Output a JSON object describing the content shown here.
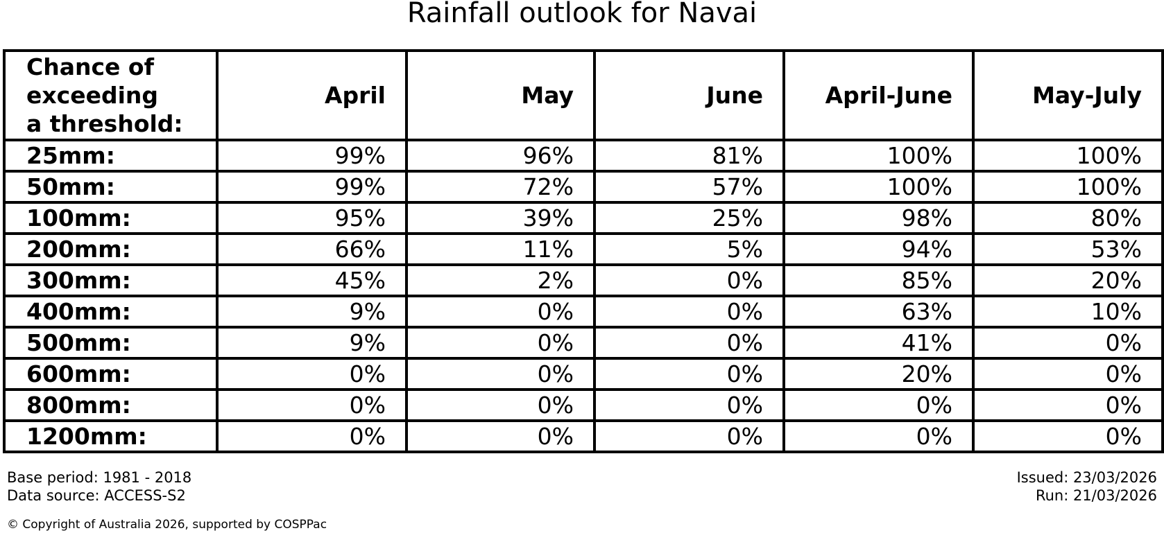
{
  "title": "Rainfall outlook for Navai",
  "table": {
    "corner_header": "Chance of\nexceeding\na threshold:",
    "months": [
      "April",
      "May",
      "June",
      "April-June",
      "May-July"
    ],
    "rows": [
      {
        "threshold": "25mm:",
        "values": [
          "99%",
          "96%",
          "81%",
          "100%",
          "100%"
        ]
      },
      {
        "threshold": "50mm:",
        "values": [
          "99%",
          "72%",
          "57%",
          "100%",
          "100%"
        ]
      },
      {
        "threshold": "100mm:",
        "values": [
          "95%",
          "39%",
          "25%",
          "98%",
          "80%"
        ]
      },
      {
        "threshold": "200mm:",
        "values": [
          "66%",
          "11%",
          "5%",
          "94%",
          "53%"
        ]
      },
      {
        "threshold": "300mm:",
        "values": [
          "45%",
          "2%",
          "0%",
          "85%",
          "20%"
        ]
      },
      {
        "threshold": "400mm:",
        "values": [
          "9%",
          "0%",
          "0%",
          "63%",
          "10%"
        ]
      },
      {
        "threshold": "500mm:",
        "values": [
          "9%",
          "0%",
          "0%",
          "41%",
          "0%"
        ]
      },
      {
        "threshold": "600mm:",
        "values": [
          "0%",
          "0%",
          "0%",
          "20%",
          "0%"
        ]
      },
      {
        "threshold": "800mm:",
        "values": [
          "0%",
          "0%",
          "0%",
          "0%",
          "0%"
        ]
      },
      {
        "threshold": "1200mm:",
        "values": [
          "0%",
          "0%",
          "0%",
          "0%",
          "0%"
        ]
      }
    ]
  },
  "chart_data": {
    "type": "table",
    "title": "Rainfall outlook for Navai",
    "row_header": "Chance of exceeding a threshold:",
    "columns": [
      "April",
      "May",
      "June",
      "April-June",
      "May-July"
    ],
    "thresholds_mm": [
      25,
      50,
      100,
      200,
      300,
      400,
      500,
      600,
      800,
      1200
    ],
    "probabilities_pct": [
      [
        99,
        96,
        81,
        100,
        100
      ],
      [
        99,
        72,
        57,
        100,
        100
      ],
      [
        95,
        39,
        25,
        98,
        80
      ],
      [
        66,
        11,
        5,
        94,
        53
      ],
      [
        45,
        2,
        0,
        85,
        20
      ],
      [
        9,
        0,
        0,
        63,
        10
      ],
      [
        9,
        0,
        0,
        41,
        0
      ],
      [
        0,
        0,
        0,
        20,
        0
      ],
      [
        0,
        0,
        0,
        0,
        0
      ],
      [
        0,
        0,
        0,
        0,
        0
      ]
    ]
  },
  "footer": {
    "base_period": "Base period: 1981 - 2018",
    "data_source": "Data source: ACCESS-S2",
    "issued": "Issued: 23/03/2026",
    "run": "Run: 21/03/2026",
    "copyright": "© Copyright of Australia 2026, supported by COSPPac"
  },
  "colors": {
    "text": "#000000",
    "border": "#000000",
    "background": "#ffffff"
  }
}
